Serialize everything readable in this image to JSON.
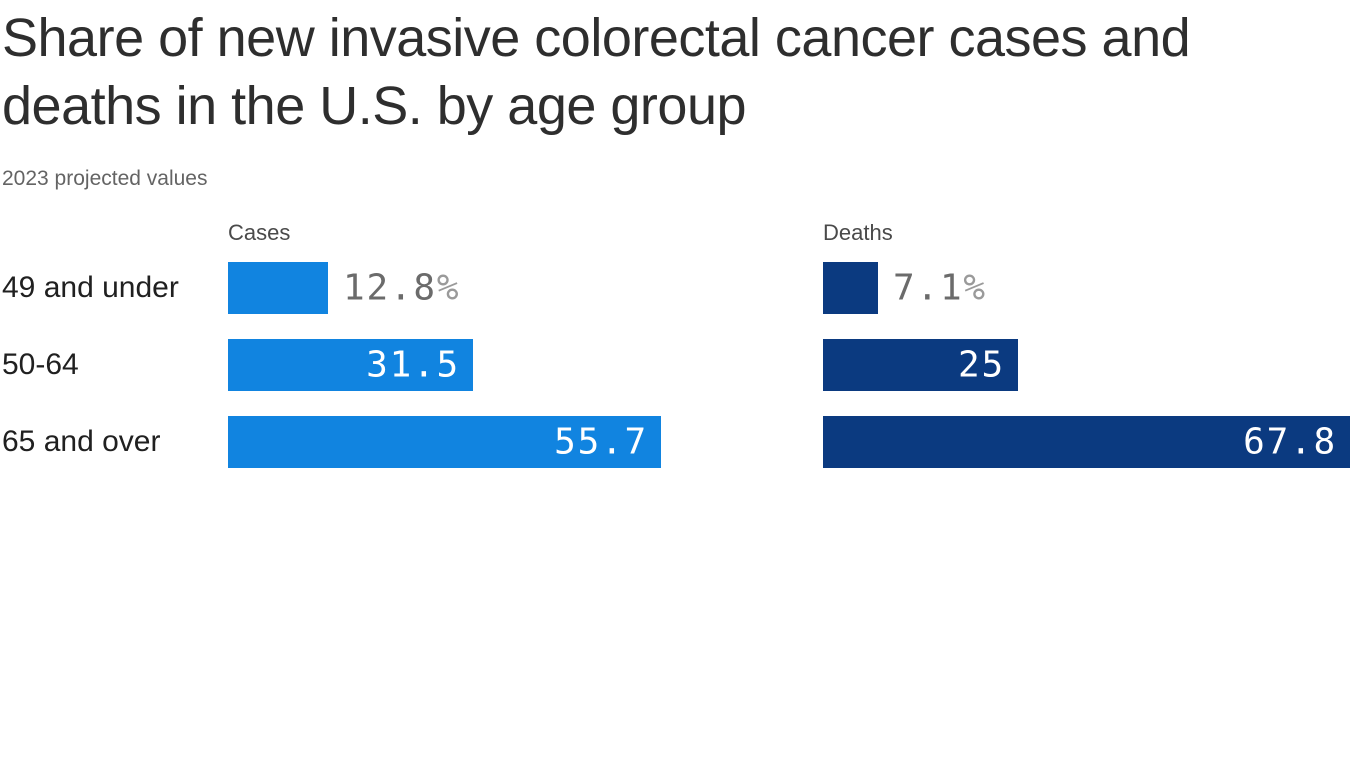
{
  "chart_data": {
    "type": "bar",
    "orientation": "horizontal",
    "title": "Share of new invasive colorectal cancer cases and deaths in the U.S. by age group",
    "subtitle": "2023 projected values",
    "categories": [
      "49 and under",
      "50-64",
      "65 and over"
    ],
    "series": [
      {
        "name": "Cases",
        "color": "#1184e0",
        "values": [
          12.8,
          31.5,
          55.7
        ],
        "display_labels": [
          "12.8%",
          "31.5",
          "55.7"
        ]
      },
      {
        "name": "Deaths",
        "color": "#0b3a80",
        "values": [
          7.1,
          25,
          67.8
        ],
        "display_labels": [
          "7.1%",
          "25",
          "67.8"
        ]
      }
    ],
    "unit": "percent",
    "xlim": [
      0,
      70
    ],
    "grid": false,
    "legend_position": "column headers above first row"
  },
  "colors": {
    "background": "#ffffff",
    "title_text": "#2e2e2e",
    "subtitle_text": "#646464",
    "column_header_text": "#4a4a4a",
    "row_label_text": "#202020",
    "outside_value_text": "#6b6b6b",
    "unit_suffix_text": "#9a9a9a",
    "inside_value_text": "#ffffff"
  }
}
